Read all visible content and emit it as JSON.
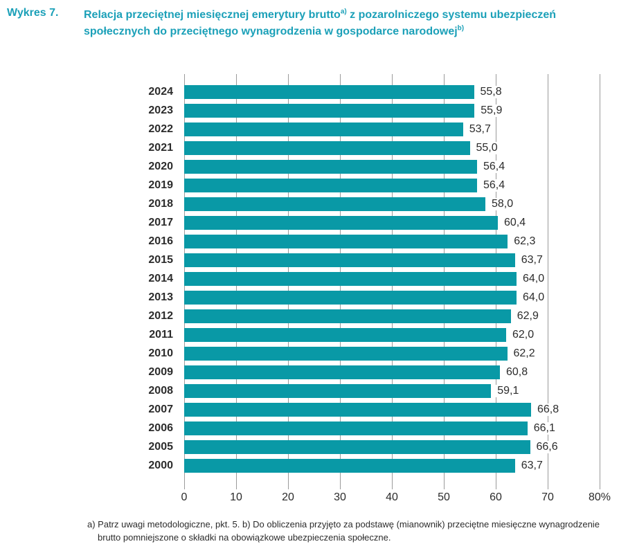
{
  "page": {
    "figure_label": "Wykres 7.",
    "title": {
      "line1_pre": "Relacja przeciętnej miesięcznej emerytury brutto",
      "sup_a": "a)",
      "line1_post": " z pozarolniczego systemu ubezpieczeń",
      "line2_pre": "społecznych do przeciętnego wynagrodzenia w gospodarce narodowej",
      "sup_b": "b)"
    },
    "footnote": {
      "line1": "a) Patrz uwagi metodologiczne, pkt. 5. b) Do obliczenia przyjęto za podstawę (mianownik) przeciętne miesięczne wynagrodzenie",
      "line2": "brutto pomniejszone o składki na obowiązkowe ubezpieczenia społeczne."
    }
  },
  "colors": {
    "bar": "#0999a6",
    "title": "#1ba0b8",
    "grid": "#9a9a9a",
    "text": "#2b2b2b"
  },
  "chart_data": {
    "type": "bar",
    "orientation": "horizontal",
    "title": "Relacja przeciętnej miesięcznej emerytury brutto z pozarolniczego systemu ubezpieczeń społecznych do przeciętnego wynagrodzenia w gospodarce narodowej",
    "categories": [
      "2024",
      "2023",
      "2022",
      "2021",
      "2020",
      "2019",
      "2018",
      "2017",
      "2016",
      "2015",
      "2014",
      "2013",
      "2012",
      "2011",
      "2010",
      "2009",
      "2008",
      "2007",
      "2006",
      "2005",
      "2000"
    ],
    "values": [
      55.8,
      55.9,
      53.7,
      55.0,
      56.4,
      56.4,
      58.0,
      60.4,
      62.3,
      63.7,
      64.0,
      64.0,
      62.9,
      62.0,
      62.2,
      60.8,
      59.1,
      66.8,
      66.1,
      66.6,
      63.7
    ],
    "value_labels": [
      "55,8",
      "55,9",
      "53,7",
      "55,0",
      "56,4",
      "56,4",
      "58,0",
      "60,4",
      "62,3",
      "63,7",
      "64,0",
      "64,0",
      "62,9",
      "62,0",
      "62,2",
      "60,8",
      "59,1",
      "66,8",
      "66,1",
      "66,6",
      "63,7"
    ],
    "x_ticks": [
      "0",
      "10",
      "20",
      "30",
      "40",
      "50",
      "60",
      "70",
      "80%"
    ],
    "xlabel": "",
    "ylabel": "",
    "xlim": [
      0,
      80
    ],
    "unit": "%",
    "grid": true,
    "legend": false
  }
}
